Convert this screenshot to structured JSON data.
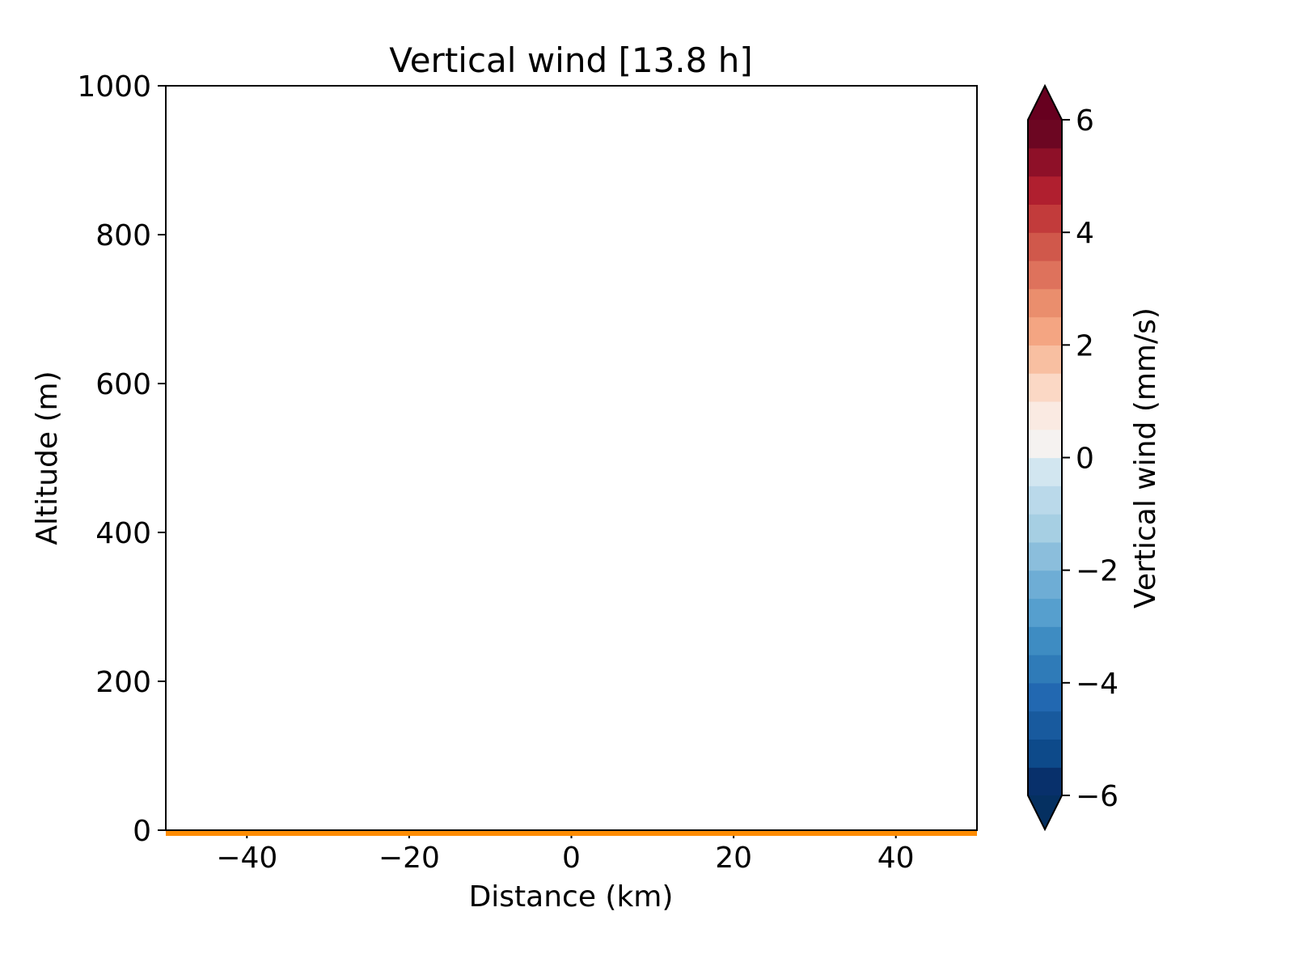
{
  "chart_data": {
    "type": "heatmap",
    "title": "Vertical wind [13.8 h]",
    "xlabel": "Distance (km)",
    "ylabel": "Altitude (m)",
    "xlim": [
      -50,
      50
    ],
    "ylim": [
      0,
      1000
    ],
    "xticks": [
      -40,
      -20,
      0,
      20,
      40
    ],
    "yticks": [
      0,
      200,
      400,
      600,
      800,
      1000
    ],
    "xtick_labels": [
      "−40",
      "−20",
      "0",
      "20",
      "40"
    ],
    "ytick_labels": [
      "0",
      "200",
      "400",
      "600",
      "800",
      "1000"
    ],
    "grid": false,
    "ground_line": {
      "altitude": 0,
      "color": "#ff8c00"
    },
    "colorbar": {
      "label": "Vertical wind (mm/s)",
      "range": [
        -6,
        6
      ],
      "extend": "both",
      "ticks": [
        -6,
        -4,
        -2,
        0,
        2,
        4,
        6
      ],
      "tick_labels": [
        "−6",
        "−4",
        "−2",
        "0",
        "2",
        "4",
        "6"
      ],
      "levels_count": 24,
      "colormap": "RdBu_r",
      "colors": [
        "#08306b",
        "#0d4a8a",
        "#185a9e",
        "#2268b1",
        "#2f7bb8",
        "#3e8cc2",
        "#569fce",
        "#6eadd5",
        "#8bbedc",
        "#a6cfe3",
        "#bad9ea",
        "#d2e6f0",
        "#f5f2f0",
        "#faeae2",
        "#fbd8c5",
        "#f8bfa1",
        "#f4a582",
        "#ea8e6d",
        "#de725c",
        "#d0584b",
        "#c23b3b",
        "#b01f2f",
        "#8e1028",
        "#6c0622"
      ],
      "under_color": "#053061",
      "over_color": "#67001f"
    }
  }
}
